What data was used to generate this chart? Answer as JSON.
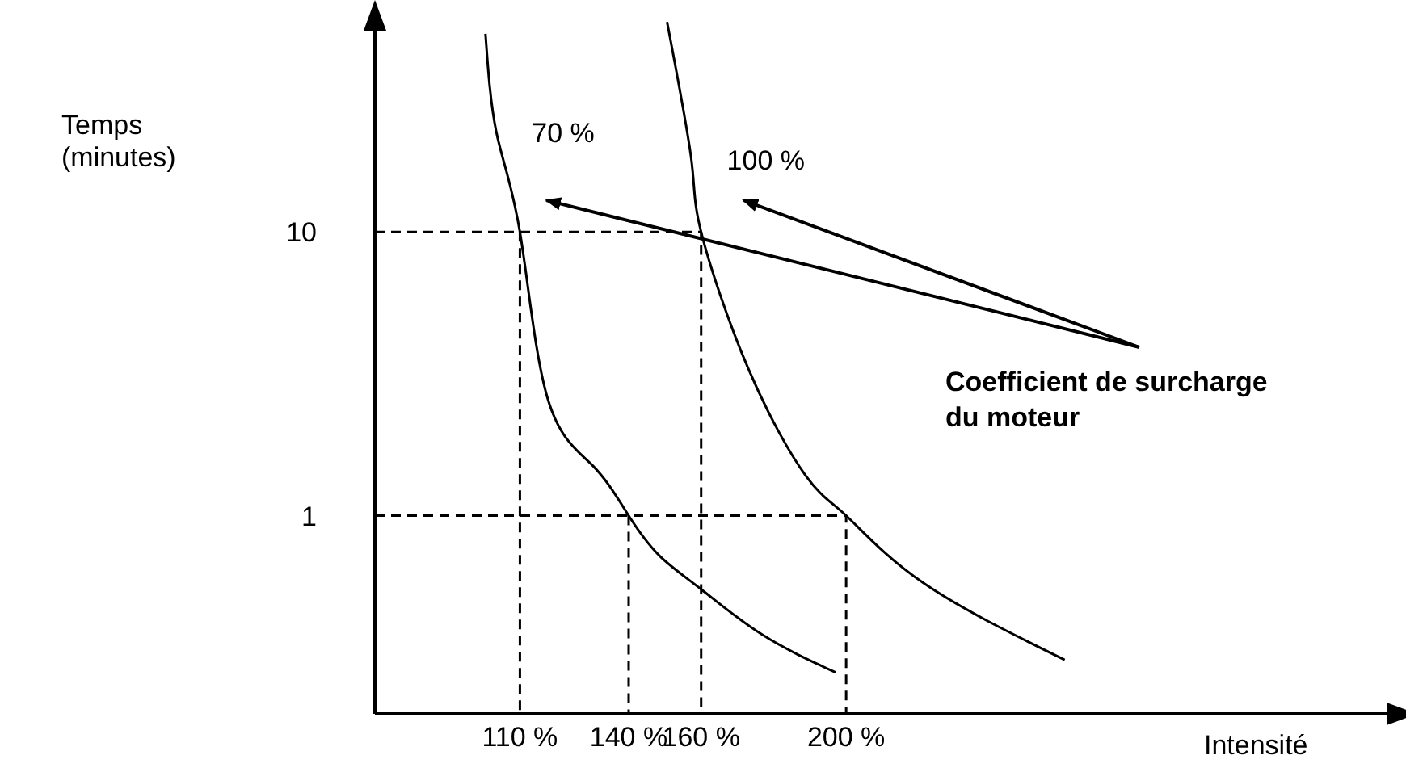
{
  "chart_data": {
    "type": "line",
    "xlabel": "Intensité",
    "ylabel": "Temps (minutes)",
    "log": "y",
    "grid": false,
    "marker": "none",
    "xlim": [
      70,
      350
    ],
    "xticks": [
      {
        "value": 110,
        "label": "110 %"
      },
      {
        "value": 140,
        "label": "140 %"
      },
      {
        "value": 160,
        "label": "160 %"
      },
      {
        "value": 200,
        "label": "200 %"
      }
    ],
    "ylim": [
      0.2,
      60
    ],
    "yticks": [
      1,
      10
    ],
    "annotations": [
      "Coefficient de surcharge du moteur"
    ],
    "series": [
      {
        "name": "70 %",
        "color": "#000000",
        "line_style": "solid",
        "x": [
          100.5,
          103.5,
          110,
          117.6,
          130.1,
          140,
          148.6,
          160,
          176.9,
          197.1
        ],
        "values": [
          50,
          22.5,
          10,
          2.6,
          1.5,
          1,
          0.72,
          0.55,
          0.38,
          0.28
        ]
      },
      {
        "name": "100 %",
        "color": "#000000",
        "line_style": "solid",
        "x": [
          150.6,
          157.3,
          160,
          173,
          188.9,
          200,
          221.2,
          260.3
        ],
        "values": [
          55,
          18,
          10,
          3.3,
          1.38,
          1,
          0.58,
          0.31
        ]
      },
      {
        "color": "#000000",
        "line_style": "dashed",
        "x": [
          70,
          160,
          160
        ],
        "values": [
          10,
          10,
          0.2
        ]
      },
      {
        "color": "#000000",
        "line_style": "dashed",
        "x": [
          110,
          110
        ],
        "values": [
          10,
          0.2
        ]
      },
      {
        "color": "#000000",
        "line_style": "dashed",
        "x": [
          70,
          200,
          200
        ],
        "values": [
          1,
          1,
          0.2
        ]
      },
      {
        "color": "#000000",
        "line_style": "dashed",
        "x": [
          140,
          140
        ],
        "values": [
          1,
          0.2
        ]
      }
    ]
  }
}
